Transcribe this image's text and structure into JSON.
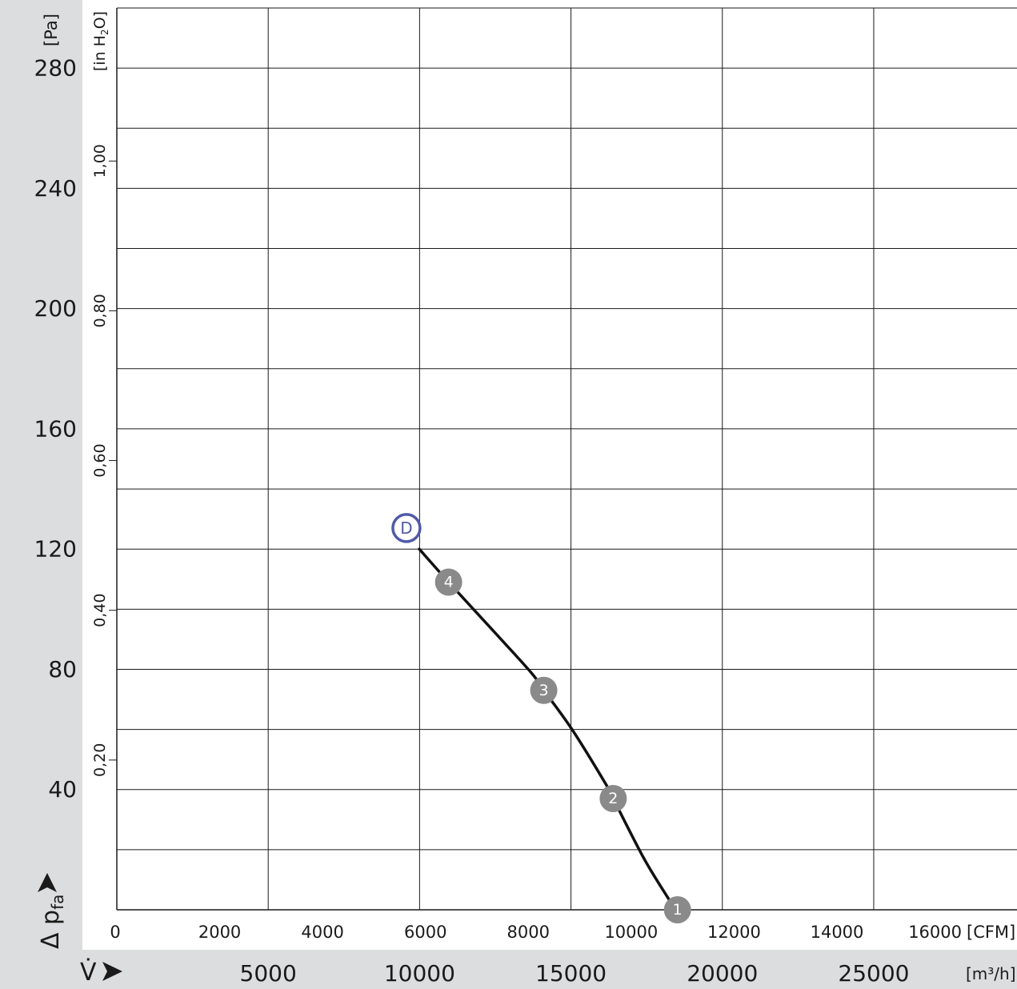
{
  "chart_data": {
    "type": "line",
    "x_axis_primary": {
      "label": "V̇",
      "unit": "[CFM]",
      "range": [
        0,
        17500
      ],
      "ticks": [
        0,
        2000,
        4000,
        6000,
        8000,
        10000,
        12000,
        14000,
        16000
      ]
    },
    "x_axis_secondary": {
      "unit": "[m³/h]",
      "ticks": [
        5000,
        10000,
        15000,
        20000,
        25000
      ]
    },
    "y_axis_primary": {
      "label": "Δ p_fa",
      "label_main": "Δ p",
      "label_sub": "fa",
      "unit": "[Pa]",
      "range": [
        0,
        300
      ],
      "ticks": [
        40,
        80,
        120,
        160,
        200,
        240,
        280
      ]
    },
    "y_axis_secondary": {
      "unit": "[in H₂O]",
      "unit_main": "[in H",
      "unit_sub": "2",
      "unit_end": "O]",
      "ticks": [
        "0,20",
        "0,40",
        "0,60",
        "0,80",
        "1,00"
      ],
      "tick_values": [
        0.2,
        0.4,
        0.6,
        0.8,
        1.0
      ]
    },
    "grid": {
      "vertical_m3h_step": 5000,
      "horizontal_pa_step": 20
    },
    "series": [
      {
        "points": [
          {
            "x": 5880,
            "y": 120
          },
          {
            "x": 6450,
            "y": 109
          },
          {
            "x": 7200,
            "y": 95
          },
          {
            "x": 8050,
            "y": 79
          },
          {
            "x": 8300,
            "y": 73
          },
          {
            "x": 8850,
            "y": 60
          },
          {
            "x": 9500,
            "y": 42
          },
          {
            "x": 9650,
            "y": 37
          },
          {
            "x": 10250,
            "y": 17
          },
          {
            "x": 10750,
            "y": 3
          }
        ]
      }
    ],
    "operating_points": [
      {
        "label": "1",
        "x": 10900,
        "y": 0
      },
      {
        "label": "2",
        "x": 9650,
        "y": 37
      },
      {
        "label": "3",
        "x": 8300,
        "y": 73
      },
      {
        "label": "4",
        "x": 6450,
        "y": 109
      }
    ],
    "design_point": {
      "label": "D",
      "x": 5630,
      "y": 127
    },
    "colors": {
      "curve": "#111111",
      "operating_point_fill": "#8a8a8a",
      "design_point_stroke": "#4f5aa8",
      "side_panel": "#dcdddf",
      "grid": "#1a1a1a"
    }
  }
}
